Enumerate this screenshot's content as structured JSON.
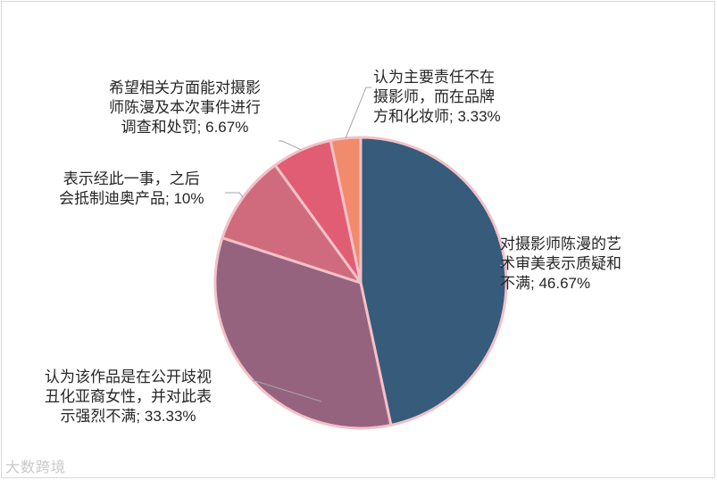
{
  "chart_data": {
    "type": "pie",
    "title": "",
    "slices": [
      {
        "label_lines": [
          "对摄影师陈漫的艺",
          "术审美表示质疑和",
          "不满; 46.67%"
        ],
        "value": 46.67,
        "color": "#365b7b"
      },
      {
        "label_lines": [
          "认为该作品是在公开歧视",
          "丑化亚裔女性，并对此表",
          "示强烈不满; 33.33%"
        ],
        "value": 33.33,
        "color": "#96637f"
      },
      {
        "label_lines": [
          "表示经此一事，之后",
          "会抵制迪奥产品; 10%"
        ],
        "value": 10,
        "color": "#d06b7d"
      },
      {
        "label_lines": [
          "希望相关方面能对摄影",
          "师陈漫及本次事件进行",
          "调查和处罚; 6.67%"
        ],
        "value": 6.67,
        "color": "#e15d73"
      },
      {
        "label_lines": [
          "认为主要责任不在",
          "摄影师，而在品牌",
          "方和化妆师; 3.33%"
        ],
        "value": 3.33,
        "color": "#f18b6c"
      }
    ],
    "legend": "none",
    "data_labels": "outside-with-leader-lines"
  },
  "watermark": "大数跨境"
}
